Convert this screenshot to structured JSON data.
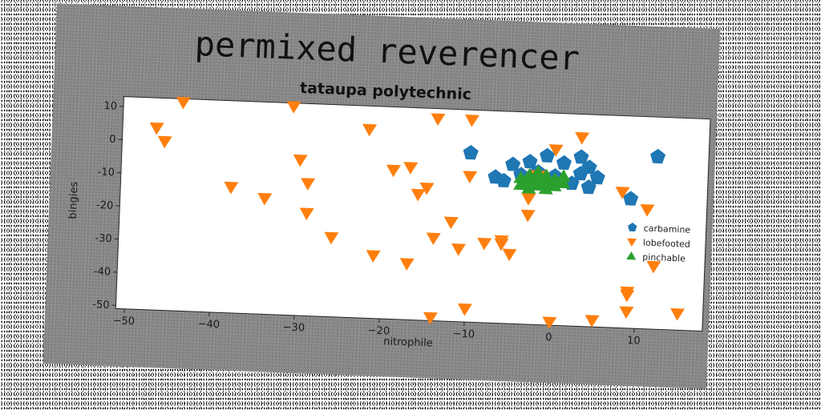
{
  "chart_data": {
    "type": "scatter",
    "title": "permixed reverencer",
    "subtitle": "tataupa polytechnic",
    "xlabel": "nitrophile",
    "ylabel": "bingies",
    "xlim": [
      -51,
      18
    ],
    "ylim": [
      -51,
      13
    ],
    "xticks": [
      -50,
      -40,
      -30,
      -20,
      -10,
      0,
      10
    ],
    "yticks": [
      10,
      0,
      -10,
      -20,
      -30,
      -40,
      -50
    ],
    "grid": false,
    "legend_position": "right",
    "colors": {
      "carbamine": "#1f77b4",
      "lobefooted": "#ff7f0e",
      "pinchable": "#2ca02c"
    },
    "series": [
      {
        "name": "carbamine",
        "marker": "pentagon",
        "points": [
          [
            -10,
            0
          ],
          [
            -3,
            -2
          ],
          [
            -1,
            0
          ],
          [
            1,
            -2
          ],
          [
            3,
            -5
          ],
          [
            3,
            0
          ],
          [
            4,
            -3
          ],
          [
            -5,
            -3
          ],
          [
            -7,
            -7
          ],
          [
            -6,
            -8
          ],
          [
            -4,
            -6
          ],
          [
            -2,
            -5
          ],
          [
            0,
            -6
          ],
          [
            2,
            -8
          ],
          [
            4,
            -9
          ],
          [
            5,
            -6
          ],
          [
            9,
            -12
          ],
          [
            12,
            1
          ]
        ]
      },
      {
        "name": "lobefooted",
        "marker": "triangle_down",
        "points": [
          [
            -47,
            4
          ],
          [
            -46,
            0
          ],
          [
            -44,
            12
          ],
          [
            -31,
            12
          ],
          [
            -30,
            -4
          ],
          [
            -29,
            -11
          ],
          [
            -38,
            -13
          ],
          [
            -34,
            -16
          ],
          [
            -29,
            -20
          ],
          [
            -26,
            -27
          ],
          [
            -22,
            6
          ],
          [
            -19,
            -6
          ],
          [
            -17,
            -5
          ],
          [
            -16,
            -13
          ],
          [
            -15,
            -11
          ],
          [
            -14,
            10
          ],
          [
            -10,
            10
          ],
          [
            -10,
            -7
          ],
          [
            -12,
            -21
          ],
          [
            -14,
            -26
          ],
          [
            -11,
            -29
          ],
          [
            -8,
            -27
          ],
          [
            -6,
            -26
          ],
          [
            -6,
            -27
          ],
          [
            -5,
            -30
          ],
          [
            -3,
            -18
          ],
          [
            -3,
            -13
          ],
          [
            -2,
            -6
          ],
          [
            0,
            2
          ],
          [
            3,
            6
          ],
          [
            8,
            -10
          ],
          [
            11,
            -15
          ],
          [
            12,
            -32
          ],
          [
            9,
            -40
          ],
          [
            9,
            -41
          ],
          [
            9,
            -46
          ],
          [
            15,
            -46
          ],
          [
            5,
            -49
          ],
          [
            0,
            -50
          ],
          [
            -10,
            -47
          ],
          [
            -14,
            -50
          ],
          [
            -17,
            -34
          ],
          [
            -21,
            -32
          ]
        ]
      },
      {
        "name": "pinchable",
        "marker": "triangle_up",
        "points": [
          [
            -4,
            -7
          ],
          [
            -3,
            -6
          ],
          [
            -3,
            -8
          ],
          [
            -2,
            -7
          ],
          [
            -2,
            -9
          ],
          [
            -1,
            -6
          ],
          [
            -1,
            -8
          ],
          [
            0,
            -7
          ],
          [
            0,
            -9
          ],
          [
            1,
            -6
          ],
          [
            -4,
            -9
          ],
          [
            -3,
            -10
          ],
          [
            -1,
            -10
          ],
          [
            1,
            -8
          ],
          [
            -2,
            -5
          ]
        ]
      }
    ]
  }
}
